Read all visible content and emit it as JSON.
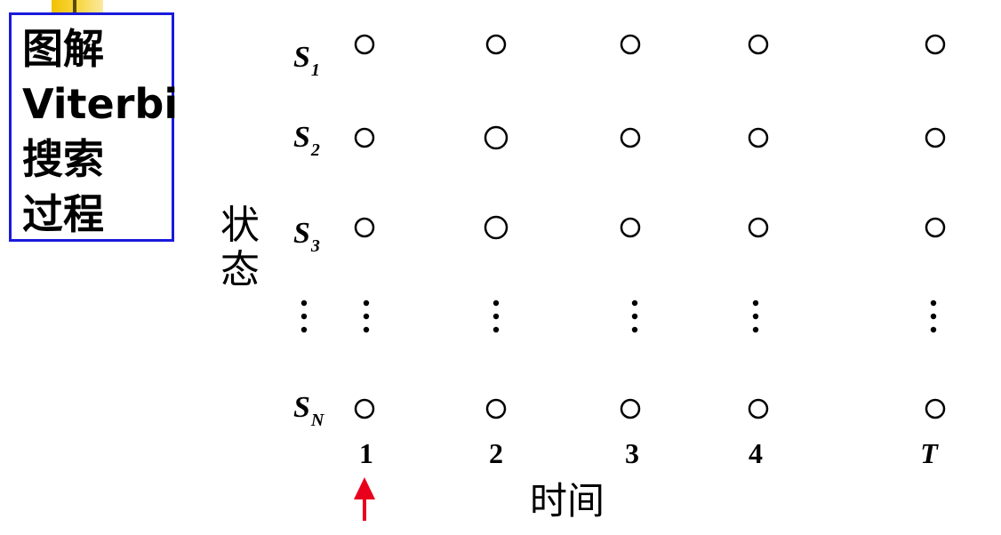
{
  "title": {
    "lines": [
      "图解",
      "Viterbi",
      "搜索",
      "过程"
    ]
  },
  "y_axis_label": {
    "chars": [
      "状",
      "态"
    ]
  },
  "x_axis_label": "时间",
  "states": [
    {
      "name": "S",
      "sub": "1"
    },
    {
      "name": "S",
      "sub": "2"
    },
    {
      "name": "S",
      "sub": "3"
    },
    {
      "name": "S",
      "sub": "N"
    }
  ],
  "times": [
    "1",
    "2",
    "3",
    "4",
    "T"
  ],
  "current_step": "1",
  "colors": {
    "title_border": "#1a1adb",
    "arrow": "#e8001c",
    "accent": "#f2c200",
    "text": "#000000"
  }
}
